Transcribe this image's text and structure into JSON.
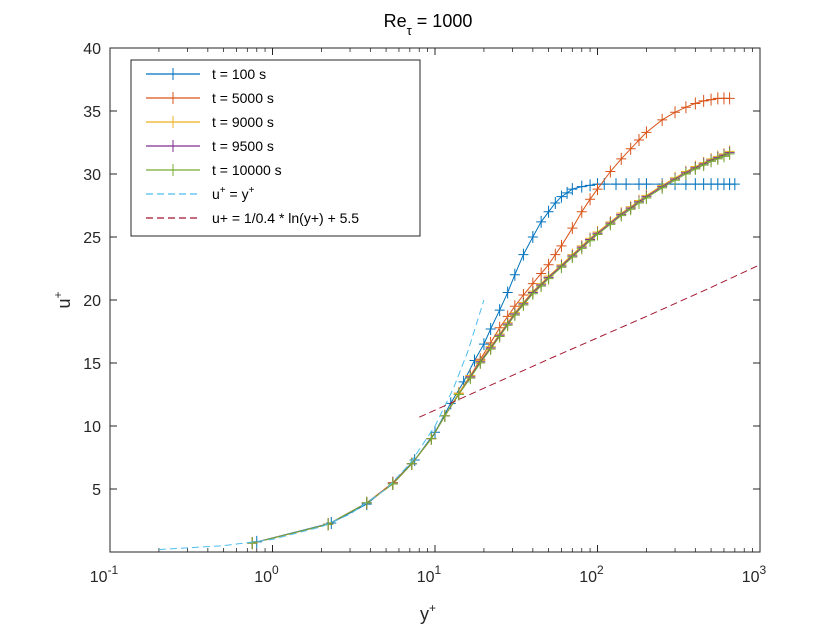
{
  "chart_data": {
    "type": "line",
    "title": "Re",
    "title_subscript": "τ",
    "title_suffix": " = 1000",
    "xlabel": "y",
    "xlabel_sup": "+",
    "ylabel": "u",
    "ylabel_sup": "+",
    "xscale": "log",
    "xlim": [
      0.1,
      1000
    ],
    "ylim": [
      0,
      40
    ],
    "xticks": [
      {
        "value": 0.1,
        "base": "10",
        "exp": "-1"
      },
      {
        "value": 1,
        "base": "10",
        "exp": "0"
      },
      {
        "value": 10,
        "base": "10",
        "exp": "1"
      },
      {
        "value": 100,
        "base": "10",
        "exp": "2"
      },
      {
        "value": 1000,
        "base": "10",
        "exp": "3"
      }
    ],
    "yticks": [
      "5",
      "10",
      "15",
      "20",
      "25",
      "30",
      "35",
      "40"
    ],
    "legend_position": "top-left",
    "series": [
      {
        "name": "t = 100 s",
        "color": "#0072BD",
        "marker": "+",
        "style": "solid",
        "x": [
          0.8,
          2.3,
          3.8,
          5.5,
          7.5,
          10,
          12.5,
          15,
          17.5,
          20,
          22,
          25,
          28,
          31,
          35,
          40,
          45,
          50,
          55,
          60,
          65,
          70,
          80,
          90,
          100,
          110,
          130,
          150,
          180,
          200,
          250,
          300,
          350,
          400,
          450,
          500,
          550,
          600,
          650,
          700
        ],
        "y": [
          0.8,
          2.3,
          3.8,
          5.5,
          7.3,
          9.5,
          11.8,
          13.5,
          15.2,
          16.5,
          17.7,
          19.2,
          20.6,
          22.0,
          23.6,
          25.0,
          26.2,
          27.0,
          27.7,
          28.2,
          28.5,
          28.8,
          29.0,
          29.1,
          29.2,
          29.2,
          29.2,
          29.2,
          29.2,
          29.2,
          29.2,
          29.2,
          29.2,
          29.2,
          29.2,
          29.2,
          29.2,
          29.2,
          29.2,
          29.2
        ]
      },
      {
        "name": "t = 5000 s",
        "color": "#D95319",
        "marker": "+",
        "style": "solid",
        "x": [
          0.75,
          2.2,
          3.8,
          5.5,
          7.2,
          9.5,
          11.5,
          14,
          16.5,
          19,
          22,
          25,
          28,
          31,
          35,
          40,
          45,
          50,
          55,
          60,
          70,
          80,
          90,
          100,
          120,
          140,
          160,
          180,
          200,
          250,
          300,
          350,
          400,
          450,
          500,
          550,
          600,
          650
        ],
        "y": [
          0.7,
          2.2,
          3.9,
          5.5,
          7.0,
          9.0,
          10.8,
          12.6,
          14.0,
          15.3,
          16.6,
          17.8,
          18.7,
          19.5,
          20.4,
          21.3,
          22.1,
          22.8,
          23.6,
          24.3,
          25.7,
          27.0,
          28.0,
          28.8,
          30.2,
          31.2,
          32.0,
          32.7,
          33.3,
          34.3,
          34.9,
          35.3,
          35.6,
          35.8,
          35.9,
          36.0,
          36.0,
          36.0
        ]
      },
      {
        "name": "t = 9000 s",
        "color": "#EDB120",
        "marker": "+",
        "style": "solid",
        "x": [
          0.75,
          2.2,
          3.8,
          5.5,
          7.2,
          9.5,
          11.5,
          14,
          16.5,
          19,
          22,
          25,
          28,
          31,
          35,
          40,
          45,
          50,
          60,
          70,
          80,
          90,
          100,
          120,
          140,
          160,
          180,
          200,
          250,
          300,
          350,
          400,
          450,
          500,
          550,
          600,
          650
        ],
        "y": [
          0.7,
          2.2,
          3.9,
          5.4,
          7.0,
          9.0,
          10.8,
          12.6,
          14.0,
          15.2,
          16.3,
          17.3,
          18.2,
          19.0,
          19.8,
          20.7,
          21.3,
          21.9,
          22.8,
          23.6,
          24.3,
          24.9,
          25.4,
          26.2,
          26.9,
          27.4,
          27.9,
          28.3,
          29.1,
          29.7,
          30.2,
          30.6,
          30.9,
          31.2,
          31.4,
          31.6,
          31.8
        ]
      },
      {
        "name": "t = 9500 s",
        "color": "#7E2F8E",
        "marker": "+",
        "style": "solid",
        "x": [
          0.75,
          2.2,
          3.8,
          5.5,
          7.2,
          9.5,
          11.5,
          14,
          16.5,
          19,
          22,
          25,
          28,
          31,
          35,
          40,
          45,
          50,
          60,
          70,
          80,
          90,
          100,
          120,
          140,
          160,
          180,
          200,
          250,
          300,
          350,
          400,
          450,
          500,
          550,
          600,
          650
        ],
        "y": [
          0.7,
          2.2,
          3.9,
          5.4,
          7.0,
          9.0,
          10.8,
          12.5,
          13.9,
          15.1,
          16.2,
          17.2,
          18.1,
          18.9,
          19.7,
          20.6,
          21.2,
          21.8,
          22.7,
          23.5,
          24.2,
          24.8,
          25.3,
          26.1,
          26.8,
          27.3,
          27.8,
          28.2,
          29.0,
          29.6,
          30.1,
          30.5,
          30.8,
          31.1,
          31.3,
          31.5,
          31.7
        ]
      },
      {
        "name": "t = 10000 s",
        "color": "#77AC30",
        "marker": "+",
        "style": "solid",
        "x": [
          0.75,
          2.2,
          3.8,
          5.5,
          7.2,
          9.5,
          11.5,
          14,
          16.5,
          19,
          22,
          25,
          28,
          31,
          35,
          40,
          45,
          50,
          60,
          70,
          80,
          90,
          100,
          120,
          140,
          160,
          180,
          200,
          250,
          300,
          350,
          400,
          450,
          500,
          550,
          600,
          650
        ],
        "y": [
          0.7,
          2.2,
          3.9,
          5.4,
          7.0,
          9.0,
          10.8,
          12.5,
          13.8,
          15.0,
          16.1,
          17.1,
          18.0,
          18.8,
          19.6,
          20.5,
          21.1,
          21.7,
          22.6,
          23.4,
          24.1,
          24.7,
          25.2,
          26.0,
          26.7,
          27.2,
          27.7,
          28.1,
          28.9,
          29.5,
          30.0,
          30.4,
          30.7,
          31.0,
          31.2,
          31.4,
          31.6
        ]
      },
      {
        "name": "u",
        "name_sup": "+",
        "name_mid": " = y",
        "name_sup2": "+",
        "color": "#4DBEEE",
        "marker": "none",
        "style": "dashed",
        "x": [
          0.2,
          0.5,
          1,
          2,
          3,
          5,
          7,
          10,
          13,
          16,
          20
        ],
        "y": [
          0.2,
          0.5,
          1,
          2,
          3,
          5,
          7,
          10,
          13,
          16,
          20
        ]
      },
      {
        "name": "u+ = 1/0.4 * ln(y+) + 5.5",
        "color": "#A2142F",
        "marker": "none",
        "style": "dashed",
        "x": [
          8,
          20,
          50,
          100,
          200,
          500,
          1000
        ],
        "y": [
          10.7,
          13.0,
          15.3,
          17.0,
          18.7,
          21.0,
          22.8
        ]
      }
    ]
  }
}
